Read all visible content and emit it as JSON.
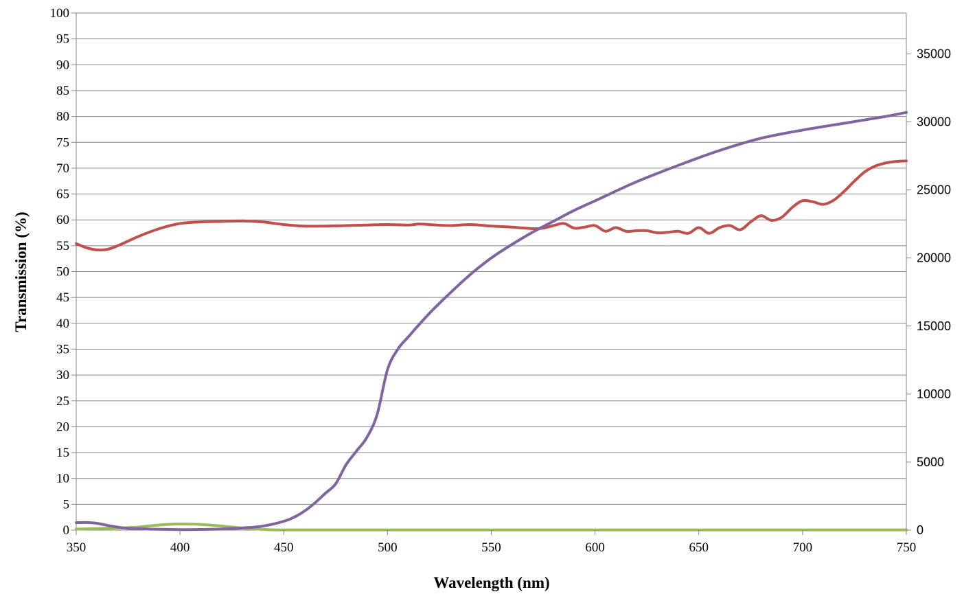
{
  "chart_data": {
    "type": "line",
    "title": "",
    "xlabel": "Wavelength (nm)",
    "ylabel": "Transmission (%)",
    "y2label": "",
    "xlim": [
      350,
      750
    ],
    "ylim": [
      0,
      100
    ],
    "y2lim": [
      0,
      38000
    ],
    "x_ticks": [
      350,
      400,
      450,
      500,
      550,
      600,
      650,
      700,
      750
    ],
    "y_ticks": [
      0,
      5,
      10,
      15,
      20,
      25,
      30,
      35,
      40,
      45,
      50,
      55,
      60,
      65,
      70,
      75,
      80,
      85,
      90,
      95,
      100
    ],
    "y2_ticks": [
      0,
      5000,
      10000,
      15000,
      20000,
      25000,
      30000,
      35000
    ],
    "grid": true,
    "legend": "none",
    "series": [
      {
        "color": "#C0504D",
        "axis": "left",
        "x": [
          350,
          355,
          360,
          365,
          370,
          380,
          390,
          400,
          410,
          420,
          430,
          440,
          450,
          460,
          470,
          480,
          490,
          500,
          510,
          515,
          520,
          530,
          540,
          550,
          560,
          570,
          575,
          580,
          585,
          590,
          595,
          600,
          605,
          610,
          615,
          620,
          625,
          630,
          635,
          640,
          645,
          650,
          655,
          660,
          665,
          670,
          675,
          680,
          685,
          690,
          695,
          700,
          705,
          710,
          715,
          720,
          725,
          730,
          735,
          740,
          745,
          750
        ],
        "y": [
          55.4,
          54.6,
          54.2,
          54.3,
          55.0,
          56.8,
          58.3,
          59.3,
          59.6,
          59.7,
          59.8,
          59.6,
          59.1,
          58.8,
          58.8,
          58.9,
          59.0,
          59.1,
          59.0,
          59.2,
          59.1,
          58.9,
          59.1,
          58.8,
          58.6,
          58.3,
          58.4,
          58.9,
          59.3,
          58.4,
          58.6,
          58.9,
          57.8,
          58.5,
          57.8,
          57.9,
          57.9,
          57.5,
          57.6,
          57.8,
          57.4,
          58.5,
          57.4,
          58.5,
          58.9,
          58.1,
          59.6,
          60.8,
          59.9,
          60.5,
          62.4,
          63.7,
          63.5,
          63.0,
          63.8,
          65.5,
          67.5,
          69.3,
          70.4,
          71.0,
          71.3,
          71.4
        ]
      },
      {
        "color": "#9BBB59",
        "axis": "left",
        "x": [
          350,
          360,
          370,
          380,
          390,
          400,
          410,
          420,
          430,
          440,
          450,
          500,
          550,
          600,
          650,
          700,
          750
        ],
        "y": [
          0.2,
          0.3,
          0.4,
          0.6,
          1.0,
          1.2,
          1.1,
          0.8,
          0.4,
          0.15,
          0.05,
          0.05,
          0.05,
          0.05,
          0.05,
          0.05,
          0.05
        ]
      },
      {
        "color": "#8064A2",
        "axis": "right",
        "x": [
          350,
          355,
          360,
          365,
          370,
          375,
          380,
          390,
          400,
          410,
          420,
          430,
          440,
          450,
          455,
          460,
          465,
          470,
          475,
          480,
          485,
          490,
          495,
          500,
          505,
          510,
          520,
          530,
          540,
          550,
          560,
          570,
          580,
          590,
          600,
          620,
          640,
          660,
          680,
          700,
          720,
          740,
          750
        ],
        "y": [
          550,
          560,
          500,
          350,
          220,
          130,
          100,
          60,
          40,
          50,
          80,
          160,
          300,
          650,
          950,
          1400,
          2000,
          2700,
          3400,
          4800,
          5800,
          6800,
          8500,
          11800,
          13300,
          14200,
          15900,
          17400,
          18800,
          20000,
          21000,
          21900,
          22700,
          23500,
          24200,
          25600,
          26800,
          27900,
          28800,
          29400,
          29900,
          30400,
          30700
        ]
      }
    ]
  }
}
